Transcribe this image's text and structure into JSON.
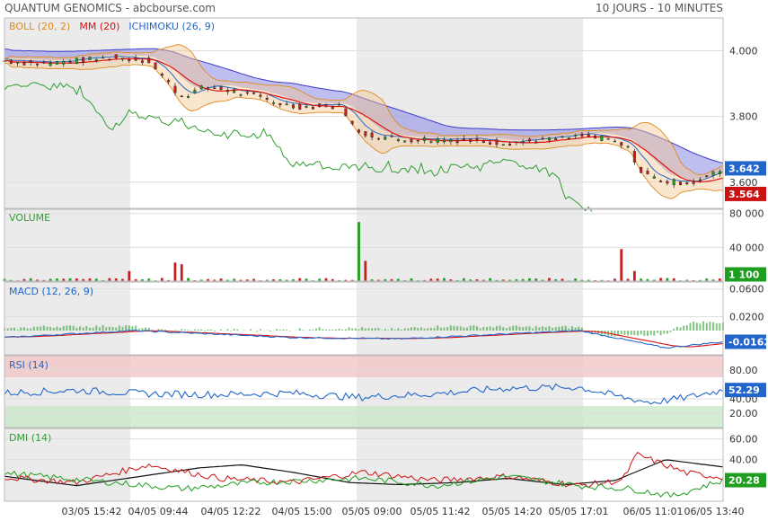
{
  "header": {
    "title": "QUANTUM GENOMICS - abcbourse.com",
    "period": "10 JOURS - 10 MINUTES"
  },
  "chart_data": [
    {
      "type": "candlestick",
      "indicators": [
        {
          "label": "BOLL (20, 2)",
          "color": "#e08a1e"
        },
        {
          "label": "MM (20)",
          "color": "#dd1111"
        },
        {
          "label": "ICHIMOKU (26, 9)",
          "color": "#2266cc"
        }
      ],
      "yticks": [
        "4.000",
        "3.800",
        "3.600"
      ],
      "ylim": [
        3.52,
        4.1
      ],
      "last_values": [
        {
          "label": "3.642",
          "value": 3.642,
          "color": "#2266cc"
        },
        {
          "label": "3.564",
          "value": 3.564,
          "color": "#cc1111"
        }
      ],
      "price_path": [
        [
          0,
          3.97
        ],
        [
          0.05,
          3.96
        ],
        [
          0.1,
          3.97
        ],
        [
          0.15,
          3.98
        ],
        [
          0.2,
          3.97
        ],
        [
          0.245,
          3.86
        ],
        [
          0.28,
          3.89
        ],
        [
          0.31,
          3.88
        ],
        [
          0.35,
          3.86
        ],
        [
          0.4,
          3.83
        ],
        [
          0.47,
          3.83
        ],
        [
          0.49,
          3.75
        ],
        [
          0.55,
          3.73
        ],
        [
          0.62,
          3.73
        ],
        [
          0.7,
          3.72
        ],
        [
          0.77,
          3.73
        ],
        [
          0.8,
          3.74
        ],
        [
          0.84,
          3.73
        ],
        [
          0.87,
          3.7
        ],
        [
          0.885,
          3.63
        ],
        [
          0.92,
          3.6
        ],
        [
          0.96,
          3.6
        ],
        [
          1.0,
          3.64
        ]
      ]
    },
    {
      "type": "bar",
      "label": "VOLUME",
      "yticks": [
        "80 000",
        "40 000"
      ],
      "ylim": [
        0,
        85000
      ],
      "last_value": "1 100",
      "spikes": [
        [
          0.175,
          12000
        ],
        [
          0.24,
          22000
        ],
        [
          0.25,
          20000
        ],
        [
          0.26,
          12000
        ],
        [
          0.47,
          13000
        ],
        [
          0.49,
          70000
        ],
        [
          0.5,
          24000
        ],
        [
          0.86,
          38000
        ],
        [
          0.88,
          12000
        ],
        [
          0.89,
          9000
        ]
      ]
    },
    {
      "type": "line",
      "label": "MACD (12, 26, 9)",
      "yticks": [
        "0.0600",
        "0.0200"
      ],
      "ylim": [
        -0.035,
        0.07
      ],
      "last_value": "-0.0162",
      "macd_path": [
        [
          0,
          -0.01
        ],
        [
          0.18,
          0.0
        ],
        [
          0.4,
          -0.01
        ],
        [
          0.55,
          -0.012
        ],
        [
          0.8,
          0.0
        ],
        [
          0.92,
          -0.025
        ],
        [
          1.0,
          -0.0162
        ]
      ]
    },
    {
      "type": "line",
      "label": "RSI (14)",
      "yticks": [
        "80.00",
        "40.00",
        "20.00"
      ],
      "ylim": [
        0,
        100
      ],
      "zones": [
        [
          70,
          100
        ],
        [
          0,
          30
        ]
      ],
      "last_value": "52.29",
      "rsi_path": [
        [
          0,
          48
        ],
        [
          0.1,
          52
        ],
        [
          0.2,
          47
        ],
        [
          0.3,
          46
        ],
        [
          0.4,
          48
        ],
        [
          0.49,
          42
        ],
        [
          0.6,
          47
        ],
        [
          0.7,
          55
        ],
        [
          0.8,
          56
        ],
        [
          0.86,
          42
        ],
        [
          0.9,
          35
        ],
        [
          0.95,
          42
        ],
        [
          1.0,
          52.29
        ]
      ]
    },
    {
      "type": "line",
      "label": "DMI (14)",
      "yticks": [
        "60.00",
        "40.00"
      ],
      "ylim": [
        0,
        70
      ],
      "last_value": "20.28",
      "adx_path": [
        [
          0,
          24
        ],
        [
          0.1,
          15
        ],
        [
          0.2,
          25
        ],
        [
          0.27,
          32
        ],
        [
          0.33,
          35
        ],
        [
          0.4,
          28
        ],
        [
          0.48,
          18
        ],
        [
          0.55,
          16
        ],
        [
          0.63,
          18
        ],
        [
          0.7,
          22
        ],
        [
          0.78,
          16
        ],
        [
          0.85,
          20
        ],
        [
          0.92,
          40
        ],
        [
          1.0,
          33
        ]
      ],
      "plus_di_path": [
        [
          0,
          23
        ],
        [
          0.1,
          18
        ],
        [
          0.2,
          35
        ],
        [
          0.3,
          22
        ],
        [
          0.4,
          18
        ],
        [
          0.5,
          28
        ],
        [
          0.6,
          20
        ],
        [
          0.7,
          24
        ],
        [
          0.8,
          15
        ],
        [
          0.86,
          20
        ],
        [
          0.88,
          45
        ],
        [
          0.95,
          27
        ],
        [
          1.0,
          23
        ]
      ],
      "minus_di_path": [
        [
          0,
          27
        ],
        [
          0.15,
          18
        ],
        [
          0.25,
          12
        ],
        [
          0.35,
          18
        ],
        [
          0.5,
          22
        ],
        [
          0.6,
          15
        ],
        [
          0.7,
          24
        ],
        [
          0.8,
          15
        ],
        [
          0.87,
          12
        ],
        [
          0.93,
          5
        ],
        [
          1.0,
          20.28
        ]
      ]
    }
  ],
  "x_labels": [
    "03/05 15:42",
    "04/05 09:44",
    "04/05 12:22",
    "04/05 15:00",
    "05/05 09:00",
    "05/05 11:42",
    "05/05 14:20",
    "05/05 17:01",
    "06/05 11:01",
    "06/05 13:40"
  ]
}
